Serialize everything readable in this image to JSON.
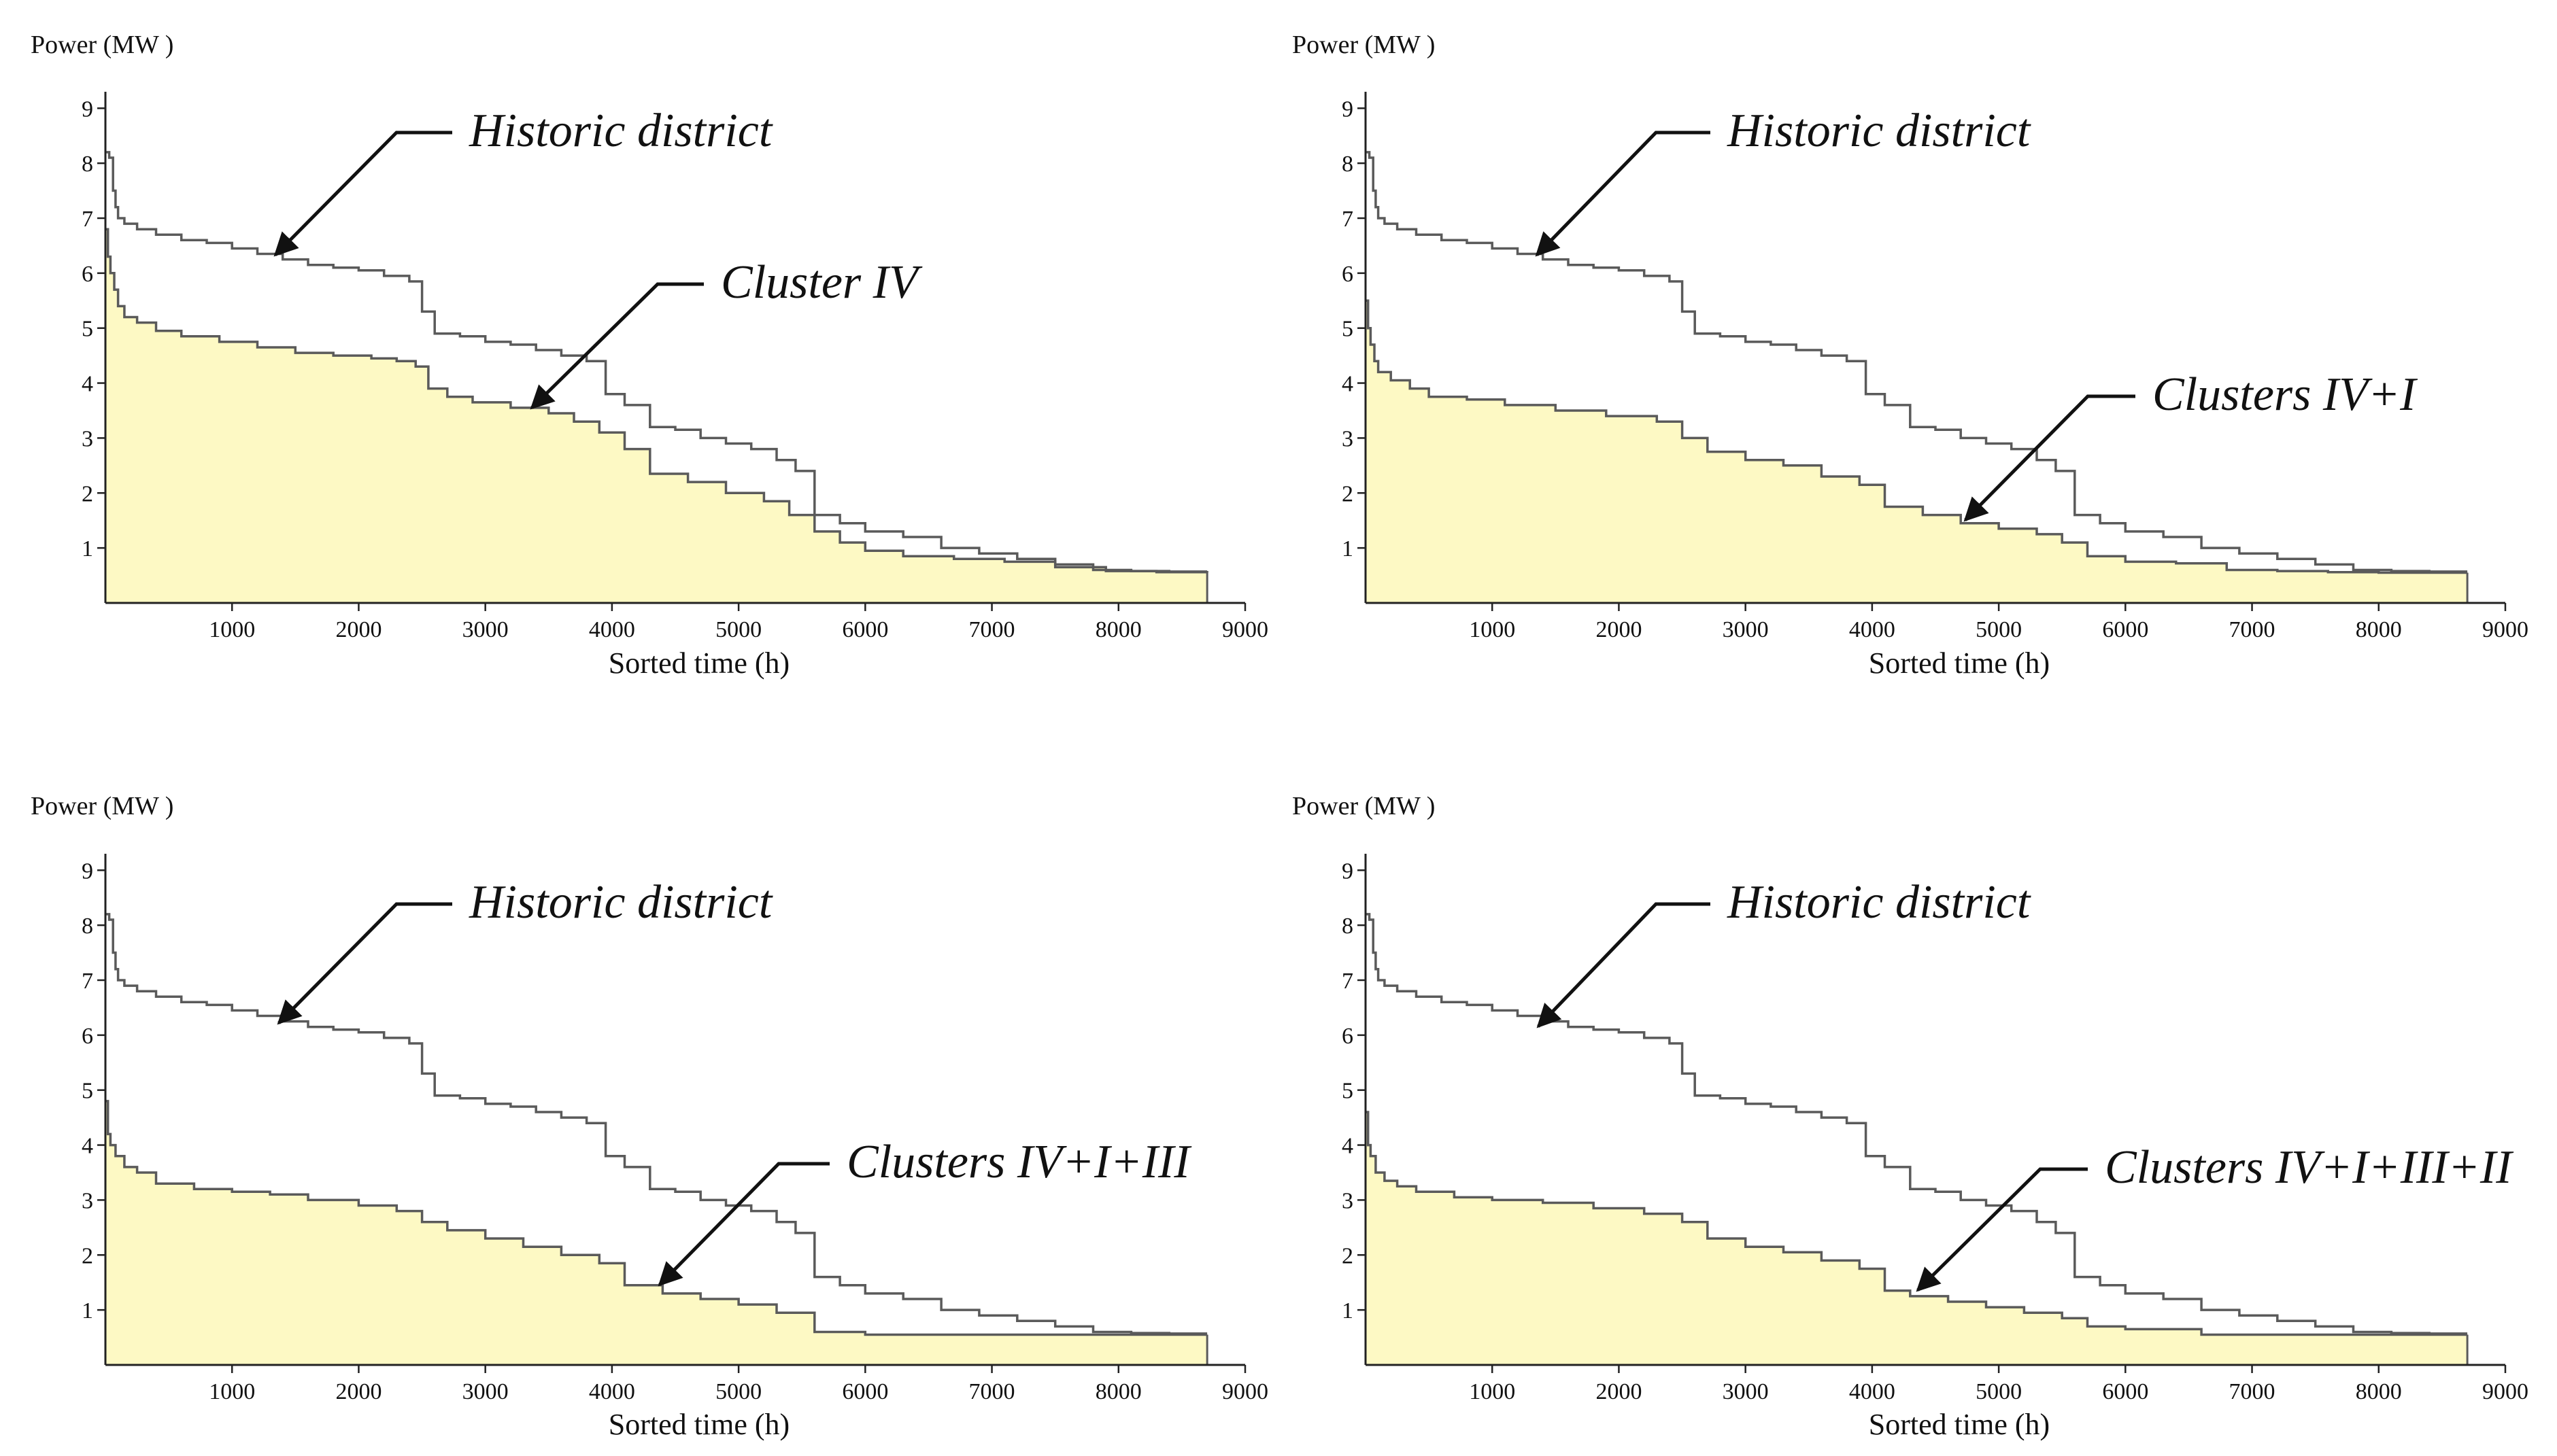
{
  "figure": {
    "panels": [
      {
        "id": "p1"
      },
      {
        "id": "p2"
      },
      {
        "id": "p3"
      },
      {
        "id": "p4"
      }
    ]
  },
  "chart_data": [
    {
      "type": "area",
      "ylabel": "Power (MW )",
      "xlabel": "Sorted time (h)",
      "xlim": [
        0,
        9000
      ],
      "ylim": [
        0,
        9.3
      ],
      "xticks": [
        1000,
        2000,
        3000,
        4000,
        5000,
        6000,
        7000,
        8000,
        9000
      ],
      "yticks": [
        1,
        2,
        3,
        4,
        5,
        6,
        7,
        8,
        9
      ],
      "series": [
        {
          "name": "Historic district",
          "style": "line",
          "x": [
            0,
            30,
            60,
            80,
            100,
            150,
            250,
            400,
            600,
            800,
            1000,
            1200,
            1400,
            1600,
            1800,
            2000,
            2200,
            2400,
            2500,
            2600,
            2800,
            3000,
            3200,
            3400,
            3600,
            3800,
            3950,
            4100,
            4300,
            4500,
            4700,
            4900,
            5100,
            5300,
            5450,
            5600,
            5800,
            6000,
            6300,
            6600,
            6900,
            7200,
            7500,
            7800,
            8100,
            8400,
            8700
          ],
          "y": [
            8.2,
            8.1,
            7.5,
            7.2,
            7.0,
            6.9,
            6.8,
            6.7,
            6.6,
            6.55,
            6.45,
            6.35,
            6.25,
            6.15,
            6.1,
            6.05,
            5.95,
            5.85,
            5.3,
            4.9,
            4.85,
            4.75,
            4.7,
            4.6,
            4.5,
            4.4,
            3.8,
            3.6,
            3.2,
            3.15,
            3.0,
            2.9,
            2.8,
            2.6,
            2.4,
            1.6,
            1.45,
            1.3,
            1.2,
            1.0,
            0.9,
            0.8,
            0.7,
            0.6,
            0.58,
            0.57,
            0.57
          ]
        },
        {
          "name": "Cluster IV",
          "style": "area",
          "fill": "#fdf9c4",
          "x": [
            0,
            20,
            40,
            70,
            100,
            150,
            250,
            400,
            600,
            900,
            1200,
            1500,
            1800,
            2100,
            2300,
            2450,
            2550,
            2700,
            2900,
            3200,
            3500,
            3700,
            3900,
            4100,
            4300,
            4600,
            4900,
            5200,
            5400,
            5600,
            5800,
            6000,
            6300,
            6700,
            7100,
            7500,
            7900,
            8300,
            8700
          ],
          "y": [
            6.8,
            6.3,
            6.0,
            5.7,
            5.4,
            5.2,
            5.1,
            4.95,
            4.85,
            4.75,
            4.65,
            4.55,
            4.5,
            4.45,
            4.4,
            4.3,
            3.9,
            3.75,
            3.65,
            3.55,
            3.45,
            3.3,
            3.1,
            2.8,
            2.35,
            2.2,
            2.0,
            1.85,
            1.6,
            1.3,
            1.1,
            0.95,
            0.85,
            0.8,
            0.75,
            0.65,
            0.58,
            0.56,
            0.55
          ]
        }
      ]
    },
    {
      "type": "area",
      "ylabel": "Power (MW )",
      "xlabel": "Sorted time (h)",
      "xlim": [
        0,
        9000
      ],
      "ylim": [
        0,
        9.3
      ],
      "xticks": [
        1000,
        2000,
        3000,
        4000,
        5000,
        6000,
        7000,
        8000,
        9000
      ],
      "yticks": [
        1,
        2,
        3,
        4,
        5,
        6,
        7,
        8,
        9
      ],
      "series": [
        {
          "name": "Historic district",
          "style": "line",
          "x": [
            0,
            30,
            60,
            80,
            100,
            150,
            250,
            400,
            600,
            800,
            1000,
            1200,
            1400,
            1600,
            1800,
            2000,
            2200,
            2400,
            2500,
            2600,
            2800,
            3000,
            3200,
            3400,
            3600,
            3800,
            3950,
            4100,
            4300,
            4500,
            4700,
            4900,
            5100,
            5300,
            5450,
            5600,
            5800,
            6000,
            6300,
            6600,
            6900,
            7200,
            7500,
            7800,
            8100,
            8400,
            8700
          ],
          "y": [
            8.2,
            8.1,
            7.5,
            7.2,
            7.0,
            6.9,
            6.8,
            6.7,
            6.6,
            6.55,
            6.45,
            6.35,
            6.25,
            6.15,
            6.1,
            6.05,
            5.95,
            5.85,
            5.3,
            4.9,
            4.85,
            4.75,
            4.7,
            4.6,
            4.5,
            4.4,
            3.8,
            3.6,
            3.2,
            3.15,
            3.0,
            2.9,
            2.8,
            2.6,
            2.4,
            1.6,
            1.45,
            1.3,
            1.2,
            1.0,
            0.9,
            0.8,
            0.7,
            0.6,
            0.58,
            0.57,
            0.57
          ]
        },
        {
          "name": "Clusters IV+I",
          "style": "area",
          "fill": "#fdf9c4",
          "x": [
            0,
            20,
            40,
            70,
            100,
            200,
            350,
            500,
            800,
            1100,
            1500,
            1900,
            2300,
            2500,
            2700,
            3000,
            3300,
            3600,
            3900,
            4100,
            4400,
            4700,
            5000,
            5300,
            5500,
            5700,
            6000,
            6400,
            6800,
            7200,
            7600,
            8000,
            8400,
            8700
          ],
          "y": [
            5.5,
            5.0,
            4.7,
            4.4,
            4.2,
            4.05,
            3.9,
            3.75,
            3.7,
            3.6,
            3.5,
            3.4,
            3.3,
            3.0,
            2.75,
            2.6,
            2.5,
            2.3,
            2.15,
            1.75,
            1.6,
            1.45,
            1.35,
            1.25,
            1.1,
            0.85,
            0.75,
            0.72,
            0.6,
            0.58,
            0.56,
            0.55,
            0.55,
            0.55
          ]
        }
      ]
    },
    {
      "type": "area",
      "ylabel": "Power (MW )",
      "xlabel": "Sorted time (h)",
      "xlim": [
        0,
        9000
      ],
      "ylim": [
        0,
        9.3
      ],
      "xticks": [
        1000,
        2000,
        3000,
        4000,
        5000,
        6000,
        7000,
        8000,
        9000
      ],
      "yticks": [
        1,
        2,
        3,
        4,
        5,
        6,
        7,
        8,
        9
      ],
      "series": [
        {
          "name": "Historic district",
          "style": "line",
          "x": [
            0,
            30,
            60,
            80,
            100,
            150,
            250,
            400,
            600,
            800,
            1000,
            1200,
            1400,
            1600,
            1800,
            2000,
            2200,
            2400,
            2500,
            2600,
            2800,
            3000,
            3200,
            3400,
            3600,
            3800,
            3950,
            4100,
            4300,
            4500,
            4700,
            4900,
            5100,
            5300,
            5450,
            5600,
            5800,
            6000,
            6300,
            6600,
            6900,
            7200,
            7500,
            7800,
            8100,
            8400,
            8700
          ],
          "y": [
            8.2,
            8.1,
            7.5,
            7.2,
            7.0,
            6.9,
            6.8,
            6.7,
            6.6,
            6.55,
            6.45,
            6.35,
            6.25,
            6.15,
            6.1,
            6.05,
            5.95,
            5.85,
            5.3,
            4.9,
            4.85,
            4.75,
            4.7,
            4.6,
            4.5,
            4.4,
            3.8,
            3.6,
            3.2,
            3.15,
            3.0,
            2.9,
            2.8,
            2.6,
            2.4,
            1.6,
            1.45,
            1.3,
            1.2,
            1.0,
            0.9,
            0.8,
            0.7,
            0.6,
            0.58,
            0.57,
            0.57
          ]
        },
        {
          "name": "Clusters IV+I+III",
          "style": "area",
          "fill": "#fdf9c4",
          "x": [
            0,
            20,
            40,
            80,
            150,
            250,
            400,
            700,
            1000,
            1300,
            1600,
            2000,
            2300,
            2500,
            2700,
            3000,
            3300,
            3600,
            3900,
            4100,
            4400,
            4700,
            5000,
            5300,
            5600,
            6000,
            6500,
            7000,
            7500,
            8000,
            8400,
            8700
          ],
          "y": [
            4.8,
            4.2,
            4.0,
            3.8,
            3.6,
            3.5,
            3.3,
            3.2,
            3.15,
            3.1,
            3.0,
            2.9,
            2.8,
            2.6,
            2.45,
            2.3,
            2.15,
            2.0,
            1.85,
            1.45,
            1.3,
            1.2,
            1.1,
            0.95,
            0.6,
            0.55,
            0.55,
            0.55,
            0.55,
            0.55,
            0.55,
            0.55
          ]
        }
      ]
    },
    {
      "type": "area",
      "ylabel": "Power (MW )",
      "xlabel": "Sorted time (h)",
      "xlim": [
        0,
        9000
      ],
      "ylim": [
        0,
        9.3
      ],
      "xticks": [
        1000,
        2000,
        3000,
        4000,
        5000,
        6000,
        7000,
        8000,
        9000
      ],
      "yticks": [
        1,
        2,
        3,
        4,
        5,
        6,
        7,
        8,
        9
      ],
      "series": [
        {
          "name": "Historic district",
          "style": "line",
          "x": [
            0,
            30,
            60,
            80,
            100,
            150,
            250,
            400,
            600,
            800,
            1000,
            1200,
            1400,
            1600,
            1800,
            2000,
            2200,
            2400,
            2500,
            2600,
            2800,
            3000,
            3200,
            3400,
            3600,
            3800,
            3950,
            4100,
            4300,
            4500,
            4700,
            4900,
            5100,
            5300,
            5450,
            5600,
            5800,
            6000,
            6300,
            6600,
            6900,
            7200,
            7500,
            7800,
            8100,
            8400,
            8700
          ],
          "y": [
            8.2,
            8.1,
            7.5,
            7.2,
            7.0,
            6.9,
            6.8,
            6.7,
            6.6,
            6.55,
            6.45,
            6.35,
            6.25,
            6.15,
            6.1,
            6.05,
            5.95,
            5.85,
            5.3,
            4.9,
            4.85,
            4.75,
            4.7,
            4.6,
            4.5,
            4.4,
            3.8,
            3.6,
            3.2,
            3.15,
            3.0,
            2.9,
            2.8,
            2.6,
            2.4,
            1.6,
            1.45,
            1.3,
            1.2,
            1.0,
            0.9,
            0.8,
            0.7,
            0.6,
            0.58,
            0.57,
            0.57
          ]
        },
        {
          "name": "Clusters IV+I+III+II",
          "style": "area",
          "fill": "#fdf9c4",
          "x": [
            0,
            20,
            40,
            80,
            150,
            250,
            400,
            700,
            1000,
            1400,
            1800,
            2200,
            2500,
            2700,
            3000,
            3300,
            3600,
            3900,
            4100,
            4300,
            4600,
            4900,
            5200,
            5500,
            5700,
            6000,
            6600,
            7000,
            7500,
            8000,
            8400,
            8700
          ],
          "y": [
            4.6,
            4.0,
            3.8,
            3.5,
            3.35,
            3.25,
            3.15,
            3.05,
            3.0,
            2.95,
            2.85,
            2.75,
            2.6,
            2.3,
            2.15,
            2.05,
            1.9,
            1.75,
            1.35,
            1.25,
            1.15,
            1.05,
            0.95,
            0.85,
            0.7,
            0.65,
            0.55,
            0.55,
            0.55,
            0.55,
            0.55,
            0.55
          ]
        }
      ]
    }
  ]
}
